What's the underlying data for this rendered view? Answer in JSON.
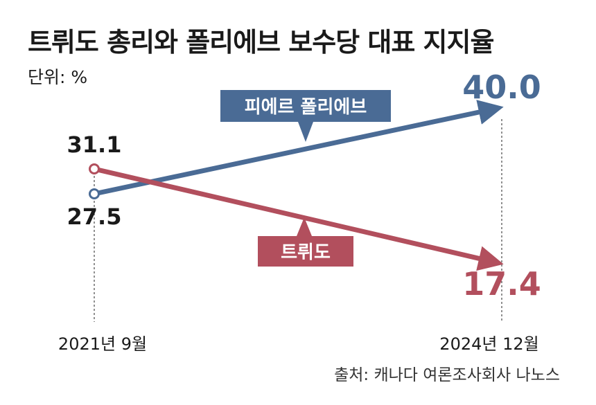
{
  "header": {
    "title": "트뤼도 총리와 폴리에브 보수당 대표 지지율",
    "unit": "단위: %"
  },
  "footer": {
    "source": "출처: 캐나다 여론조사회사 나노스"
  },
  "colors": {
    "poilievre": "#4a6b95",
    "trudeau": "#b24f5d",
    "text": "#1a1a1a",
    "guide": "#555555"
  },
  "chart_data": {
    "type": "line",
    "title": "트뤼도 총리와 폴리에브 보수당 대표 지지율",
    "categories": [
      "2021년 9월",
      "2024년 12월"
    ],
    "ylabel": "",
    "ylim": [
      10,
      45
    ],
    "grid": false,
    "series": [
      {
        "name": "피에르 폴리에브",
        "values": [
          27.5,
          40.0
        ],
        "labels": [
          "27.5",
          "40.0"
        ],
        "color": "#4a6b95"
      },
      {
        "name": "트뤼도",
        "values": [
          31.1,
          17.4
        ],
        "labels": [
          "31.1",
          "17.4"
        ],
        "color": "#b24f5d"
      }
    ]
  }
}
